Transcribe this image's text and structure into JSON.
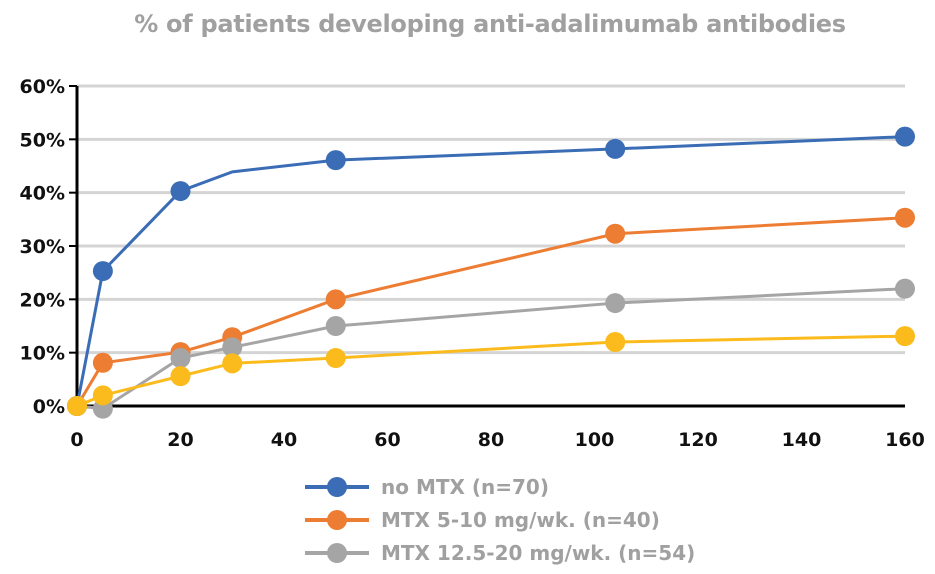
{
  "chart_data": {
    "type": "line",
    "title": "% of patients developing anti-adalimumab antibodies",
    "xlabel": "",
    "ylabel": "",
    "xlim": [
      0,
      160
    ],
    "ylim": [
      0,
      60
    ],
    "x_ticks": [
      "0",
      "20",
      "40",
      "60",
      "80",
      "100",
      "120",
      "140",
      "160"
    ],
    "x_tick_values": [
      0,
      20,
      40,
      60,
      80,
      100,
      120,
      140,
      160
    ],
    "y_ticks": [
      "0%",
      "10%",
      "20%",
      "30%",
      "40%",
      "50%",
      "60%"
    ],
    "y_tick_values": [
      0,
      10,
      20,
      30,
      40,
      50,
      60
    ],
    "grid": "horizontal",
    "legend_position": "bottom",
    "series": [
      {
        "name": "no MTX (n=70)",
        "color": "#3a6db5",
        "points": [
          {
            "x": 0,
            "y": 0,
            "marker": true
          },
          {
            "x": 5,
            "y": 25.3,
            "marker": true
          },
          {
            "x": 20,
            "y": 40.3,
            "marker": true
          },
          {
            "x": 30,
            "y": 43.9,
            "marker": false
          },
          {
            "x": 50,
            "y": 46.1,
            "marker": true
          },
          {
            "x": 104,
            "y": 48.2,
            "marker": true
          },
          {
            "x": 160,
            "y": 50.5,
            "marker": true
          }
        ]
      },
      {
        "name": "MTX 5-10 mg/wk. (n=40)",
        "color": "#ec7d33",
        "points": [
          {
            "x": 0,
            "y": 0,
            "marker": true
          },
          {
            "x": 5,
            "y": 8.1,
            "marker": true
          },
          {
            "x": 20,
            "y": 10.1,
            "marker": true
          },
          {
            "x": 30,
            "y": 12.9,
            "marker": true
          },
          {
            "x": 50,
            "y": 20.0,
            "marker": true
          },
          {
            "x": 104,
            "y": 32.3,
            "marker": true
          },
          {
            "x": 160,
            "y": 35.3,
            "marker": true
          }
        ]
      },
      {
        "name": "MTX 12.5-20 mg/wk. (n=54)",
        "color": "#a5a5a5",
        "points": [
          {
            "x": 0,
            "y": 0,
            "marker": true
          },
          {
            "x": 5,
            "y": -0.5,
            "marker": true
          },
          {
            "x": 20,
            "y": 9.0,
            "marker": true
          },
          {
            "x": 30,
            "y": 11.0,
            "marker": true
          },
          {
            "x": 50,
            "y": 15.0,
            "marker": true
          },
          {
            "x": 104,
            "y": 19.3,
            "marker": true
          },
          {
            "x": 160,
            "y": 22.0,
            "marker": true
          }
        ]
      },
      {
        "name": "",
        "color": "#fbbb1c",
        "points": [
          {
            "x": 0,
            "y": 0,
            "marker": true
          },
          {
            "x": 5,
            "y": 2.0,
            "marker": true
          },
          {
            "x": 20,
            "y": 5.6,
            "marker": true
          },
          {
            "x": 30,
            "y": 8.0,
            "marker": true
          },
          {
            "x": 50,
            "y": 9.0,
            "marker": true
          },
          {
            "x": 104,
            "y": 12.0,
            "marker": true
          },
          {
            "x": 160,
            "y": 13.1,
            "marker": true
          }
        ]
      }
    ]
  },
  "legend": {
    "items": [
      {
        "label": "no MTX (n=70)",
        "color": "#3a6db5"
      },
      {
        "label": "MTX 5-10 mg/wk. (n=40)",
        "color": "#ec7d33"
      },
      {
        "label": "MTX 12.5-20 mg/wk. (n=54)",
        "color": "#a5a5a5"
      }
    ]
  }
}
